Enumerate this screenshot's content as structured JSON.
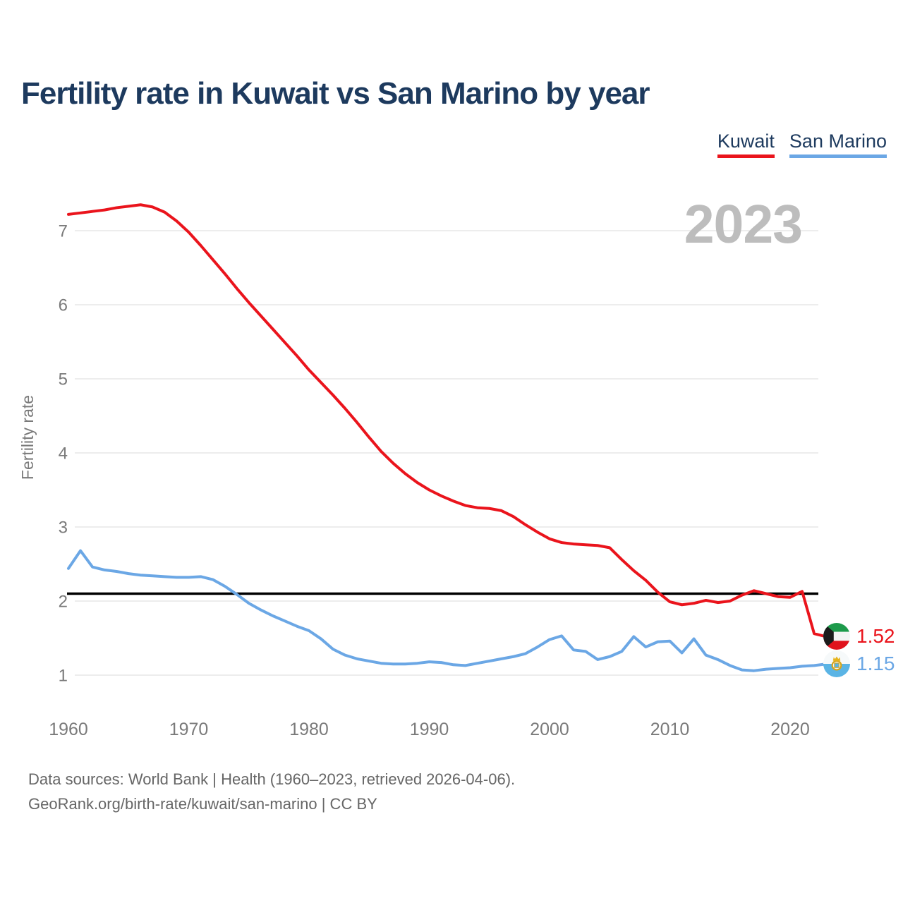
{
  "page": {
    "title": "Fertility rate in Kuwait vs San Marino by year"
  },
  "watermark": "2023",
  "legend": {
    "items": [
      {
        "label": "Kuwait",
        "color": "#ea141c"
      },
      {
        "label": "San Marino",
        "color": "#6ba7e5"
      }
    ]
  },
  "end_labels": {
    "kuwait": {
      "value": "1.52",
      "color": "#ea141c",
      "flag": "kuwait-flag"
    },
    "san_marino": {
      "value": "1.15",
      "color": "#6ba7e5",
      "flag": "san-marino-flag"
    }
  },
  "footer": {
    "line1": "Data sources: World Bank | Health (1960–2023, retrieved 2026-04-06).",
    "line2": "GeoRank.org/birth-rate/kuwait/san-marino | CC BY"
  },
  "chart_data": {
    "type": "line",
    "title": "Fertility rate in Kuwait vs San Marino by year",
    "xlabel": "",
    "ylabel": "Fertility rate",
    "xlim": [
      1960,
      2023
    ],
    "ylim": [
      0.55,
      7.6
    ],
    "x_ticks": [
      1960,
      1970,
      1980,
      1990,
      2000,
      2010,
      2020
    ],
    "y_ticks": [
      1,
      2,
      3,
      4,
      5,
      6,
      7
    ],
    "grid": "horizontal",
    "legend_position": "top-right",
    "watermark": "2023",
    "reference_line": {
      "value": 2.1,
      "color": "#000000"
    },
    "x": [
      1960,
      1961,
      1962,
      1963,
      1964,
      1965,
      1966,
      1967,
      1968,
      1969,
      1970,
      1971,
      1972,
      1973,
      1974,
      1975,
      1976,
      1977,
      1978,
      1979,
      1980,
      1981,
      1982,
      1983,
      1984,
      1985,
      1986,
      1987,
      1988,
      1989,
      1990,
      1991,
      1992,
      1993,
      1994,
      1995,
      1996,
      1997,
      1998,
      1999,
      2000,
      2001,
      2002,
      2003,
      2004,
      2005,
      2006,
      2007,
      2008,
      2009,
      2010,
      2011,
      2012,
      2013,
      2014,
      2015,
      2016,
      2017,
      2018,
      2019,
      2020,
      2021,
      2022,
      2023
    ],
    "series": [
      {
        "name": "Kuwait",
        "color": "#ea141c",
        "end_label": "1.52",
        "values": [
          7.22,
          7.24,
          7.26,
          7.28,
          7.31,
          7.33,
          7.35,
          7.32,
          7.25,
          7.13,
          6.98,
          6.8,
          6.61,
          6.42,
          6.22,
          6.03,
          5.85,
          5.67,
          5.49,
          5.31,
          5.12,
          4.95,
          4.78,
          4.6,
          4.41,
          4.21,
          4.02,
          3.86,
          3.72,
          3.6,
          3.5,
          3.42,
          3.35,
          3.29,
          3.26,
          3.25,
          3.22,
          3.14,
          3.03,
          2.93,
          2.84,
          2.79,
          2.77,
          2.76,
          2.75,
          2.72,
          2.56,
          2.41,
          2.28,
          2.12,
          1.99,
          1.95,
          1.97,
          2.01,
          1.98,
          2.0,
          2.08,
          2.14,
          2.1,
          2.06,
          2.05,
          2.13,
          1.56,
          1.52
        ]
      },
      {
        "name": "San Marino",
        "color": "#6ba7e5",
        "end_label": "1.15",
        "values": [
          2.44,
          2.68,
          2.46,
          2.42,
          2.4,
          2.37,
          2.35,
          2.34,
          2.33,
          2.32,
          2.32,
          2.33,
          2.29,
          2.2,
          2.09,
          1.97,
          1.88,
          1.8,
          1.73,
          1.66,
          1.6,
          1.49,
          1.35,
          1.27,
          1.22,
          1.19,
          1.16,
          1.15,
          1.15,
          1.16,
          1.18,
          1.17,
          1.14,
          1.13,
          1.16,
          1.19,
          1.22,
          1.25,
          1.29,
          1.38,
          1.48,
          1.53,
          1.34,
          1.32,
          1.21,
          1.25,
          1.32,
          1.52,
          1.38,
          1.45,
          1.46,
          1.3,
          1.49,
          1.27,
          1.21,
          1.13,
          1.07,
          1.06,
          1.08,
          1.09,
          1.1,
          1.12,
          1.13,
          1.15
        ]
      }
    ]
  }
}
